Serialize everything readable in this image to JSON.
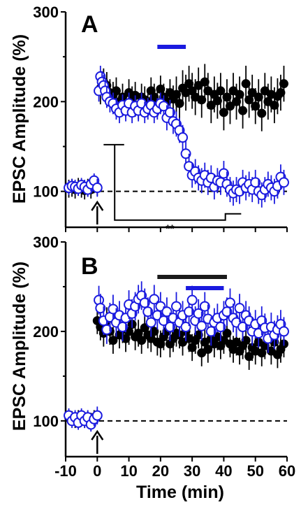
{
  "chart_data": [
    {
      "type": "scatter",
      "panel_label": "A",
      "xlim": [
        -10,
        60
      ],
      "ylim": [
        60,
        300
      ],
      "yticks": [
        100,
        200,
        300
      ],
      "ylabel": "EPSC Amplitude (%)",
      "xlabel": "",
      "baseline": 100,
      "arrow_at_x": 0,
      "bars": [
        {
          "color": "#1a1adf",
          "x": [
            19,
            28
          ]
        }
      ],
      "significance": "**",
      "series": [
        {
          "color": "#000000",
          "marker": "filled-circle",
          "x": [
            -9,
            -8,
            -7,
            -6,
            -5,
            -4,
            -3,
            -2,
            -1,
            0,
            1,
            2,
            3,
            4,
            5,
            6,
            7,
            8,
            9,
            10,
            11,
            12,
            13,
            14,
            15,
            16,
            17,
            18,
            19,
            20,
            21,
            22,
            23,
            24,
            25,
            26,
            27,
            28,
            29,
            30,
            31,
            32,
            33,
            34,
            35,
            36,
            37,
            38,
            39,
            40,
            41,
            42,
            43,
            44,
            45,
            46,
            47,
            48,
            49,
            50,
            51,
            52,
            53,
            54,
            55,
            56,
            57,
            58,
            59
          ],
          "y": [
            103,
            104,
            102,
            105,
            103,
            101,
            104,
            102,
            108,
            105,
            215,
            222,
            218,
            210,
            207,
            212,
            200,
            205,
            198,
            210,
            202,
            207,
            195,
            205,
            202,
            200,
            212,
            205,
            198,
            214,
            205,
            200,
            210,
            203,
            208,
            198,
            215,
            210,
            220,
            212,
            205,
            218,
            202,
            222,
            212,
            196,
            208,
            201,
            212,
            188,
            205,
            195,
            212,
            200,
            208,
            190,
            220,
            202,
            210,
            195,
            205,
            187,
            212,
            200,
            208,
            196,
            206,
            210,
            220
          ],
          "err": [
            10,
            10,
            10,
            10,
            10,
            10,
            10,
            10,
            10,
            10,
            18,
            15,
            15,
            15,
            15,
            15,
            15,
            15,
            15,
            15,
            15,
            15,
            15,
            15,
            15,
            15,
            15,
            15,
            15,
            15,
            15,
            15,
            15,
            15,
            20,
            20,
            20,
            20,
            20,
            20,
            20,
            20,
            20,
            20,
            20,
            20,
            20,
            20,
            20,
            20,
            20,
            20,
            20,
            20,
            20,
            20,
            20,
            20,
            20,
            20,
            20,
            20,
            20,
            20,
            20,
            20,
            20,
            20,
            20
          ]
        },
        {
          "color": "#1a1adf",
          "marker": "open-circle",
          "x": [
            -9,
            -8,
            -7,
            -6,
            -5,
            -4,
            -3,
            -2,
            -1,
            0,
            0.5,
            1,
            1.5,
            2,
            2.5,
            3,
            4,
            5,
            6,
            7,
            8,
            9,
            10,
            11,
            12,
            13,
            14,
            15,
            16,
            17,
            18,
            19,
            20,
            21,
            22,
            23,
            24,
            25,
            26,
            27,
            28,
            29,
            30,
            31,
            32,
            33,
            34,
            35,
            36,
            37,
            38,
            39,
            40,
            41,
            42,
            43,
            44,
            45,
            46,
            47,
            48,
            49,
            50,
            51,
            52,
            53,
            54,
            55,
            56,
            57,
            58,
            59
          ],
          "y": [
            104,
            106,
            105,
            103,
            107,
            105,
            102,
            108,
            112,
            104,
            212,
            228,
            222,
            218,
            212,
            205,
            200,
            198,
            192,
            188,
            196,
            190,
            198,
            188,
            195,
            190,
            198,
            188,
            192,
            196,
            188,
            192,
            198,
            195,
            182,
            188,
            178,
            175,
            168,
            160,
            142,
            128,
            118,
            122,
            115,
            112,
            118,
            110,
            115,
            105,
            112,
            110,
            120,
            108,
            102,
            98,
            102,
            100,
            110,
            104,
            108,
            102,
            110,
            100,
            96,
            102,
            108,
            104,
            100,
            106,
            116,
            110
          ],
          "err": [
            8,
            8,
            8,
            8,
            8,
            8,
            8,
            8,
            8,
            10,
            12,
            12,
            12,
            12,
            12,
            12,
            12,
            12,
            12,
            12,
            12,
            12,
            12,
            12,
            12,
            12,
            12,
            12,
            12,
            12,
            12,
            12,
            12,
            12,
            14,
            14,
            14,
            14,
            14,
            14,
            14,
            14,
            14,
            14,
            14,
            14,
            14,
            14,
            14,
            14,
            14,
            14,
            14,
            14,
            14,
            14,
            14,
            14,
            14,
            14,
            14,
            14,
            14,
            14,
            14,
            14,
            14,
            14,
            14,
            14,
            14,
            14
          ]
        }
      ]
    },
    {
      "type": "scatter",
      "panel_label": "B",
      "xlim": [
        -10,
        60
      ],
      "ylim": [
        60,
        300
      ],
      "yticks": [
        100,
        200,
        300
      ],
      "xticks": [
        -10,
        0,
        10,
        20,
        30,
        40,
        50,
        60
      ],
      "ylabel": "EPSC Amplitude (%)",
      "xlabel": "Time (min)",
      "baseline": 100,
      "arrow_at_x": 0,
      "bars": [
        {
          "color": "#1a1a1a",
          "x": [
            19,
            41
          ]
        },
        {
          "color": "#1a1adf",
          "x": [
            28,
            40
          ]
        }
      ],
      "series": [
        {
          "color": "#000000",
          "marker": "filled-circle",
          "x": [
            -9,
            -8,
            -7,
            -6,
            -5,
            -4,
            -3,
            -2,
            -1,
            0,
            1,
            2,
            3,
            4,
            5,
            6,
            7,
            8,
            9,
            10,
            11,
            12,
            13,
            14,
            15,
            16,
            17,
            18,
            19,
            20,
            21,
            22,
            23,
            24,
            25,
            26,
            27,
            28,
            29,
            30,
            31,
            32,
            33,
            34,
            35,
            36,
            37,
            38,
            39,
            40,
            41,
            42,
            43,
            44,
            45,
            46,
            47,
            48,
            49,
            50,
            51,
            52,
            53,
            54,
            55,
            56,
            57,
            58,
            59
          ],
          "y": [
            104,
            103,
            100,
            104,
            102,
            100,
            103,
            101,
            104,
            212,
            205,
            198,
            212,
            200,
            190,
            210,
            196,
            202,
            192,
            200,
            208,
            194,
            198,
            190,
            204,
            196,
            192,
            200,
            188,
            186,
            194,
            200,
            186,
            192,
            198,
            196,
            188,
            200,
            192,
            182,
            190,
            196,
            176,
            188,
            180,
            192,
            186,
            194,
            184,
            190,
            198,
            186,
            180,
            188,
            178,
            184,
            190,
            172,
            182,
            178,
            188,
            176,
            184,
            192,
            178,
            188,
            174,
            180,
            186
          ],
          "err": [
            8,
            8,
            8,
            8,
            8,
            8,
            8,
            8,
            8,
            15,
            15,
            15,
            15,
            15,
            15,
            15,
            15,
            15,
            15,
            15,
            15,
            15,
            15,
            15,
            15,
            15,
            15,
            15,
            15,
            15,
            15,
            15,
            15,
            15,
            15,
            15,
            15,
            15,
            15,
            15,
            15,
            15,
            15,
            15,
            15,
            15,
            15,
            15,
            15,
            15,
            15,
            15,
            15,
            15,
            15,
            15,
            15,
            15,
            15,
            15,
            15,
            15,
            15,
            15,
            15,
            15,
            15,
            15,
            15
          ]
        },
        {
          "color": "#1a1adf",
          "marker": "open-circle",
          "x": [
            -9,
            -8,
            -7,
            -6,
            -5,
            -4,
            -3,
            -2,
            -1,
            0,
            0.5,
            1,
            2,
            3,
            4,
            5,
            6,
            7,
            8,
            9,
            10,
            11,
            12,
            13,
            14,
            15,
            16,
            17,
            18,
            19,
            20,
            21,
            22,
            23,
            24,
            25,
            26,
            27,
            28,
            29,
            30,
            31,
            32,
            33,
            34,
            35,
            36,
            37,
            38,
            39,
            40,
            41,
            42,
            43,
            44,
            45,
            46,
            47,
            48,
            49,
            50,
            51,
            52,
            53,
            54,
            55,
            56,
            57,
            58,
            59
          ],
          "y": [
            106,
            100,
            104,
            98,
            106,
            100,
            104,
            96,
            102,
            106,
            235,
            226,
            212,
            202,
            216,
            225,
            210,
            218,
            205,
            215,
            230,
            220,
            228,
            236,
            240,
            232,
            222,
            210,
            236,
            218,
            228,
            212,
            222,
            205,
            215,
            228,
            210,
            218,
            205,
            222,
            235,
            212,
            220,
            206,
            228,
            214,
            200,
            210,
            215,
            205,
            218,
            222,
            232,
            215,
            210,
            226,
            205,
            218,
            212,
            200,
            208,
            198,
            212,
            204,
            192,
            205,
            196,
            202,
            208,
            200
          ],
          "err": [
            8,
            8,
            8,
            8,
            8,
            8,
            8,
            8,
            8,
            10,
            16,
            16,
            16,
            16,
            16,
            16,
            16,
            16,
            16,
            16,
            16,
            16,
            16,
            16,
            16,
            16,
            16,
            16,
            16,
            16,
            16,
            16,
            16,
            16,
            16,
            16,
            16,
            16,
            16,
            16,
            16,
            16,
            16,
            16,
            16,
            16,
            16,
            16,
            16,
            16,
            16,
            16,
            16,
            16,
            16,
            16,
            16,
            16,
            16,
            16,
            16,
            16,
            16,
            16,
            16,
            16,
            16,
            16,
            16,
            16
          ]
        }
      ]
    }
  ]
}
